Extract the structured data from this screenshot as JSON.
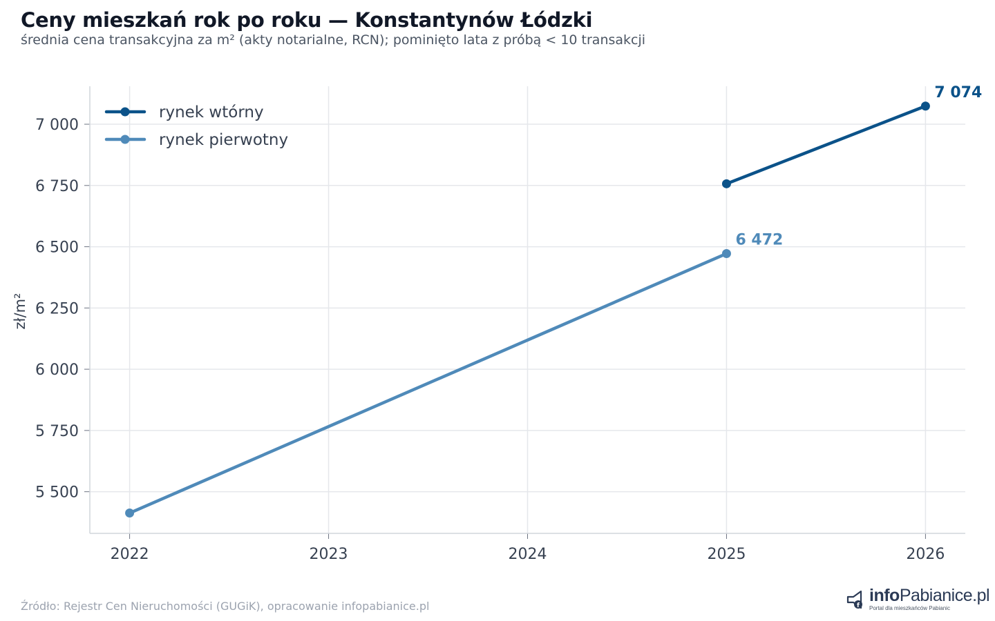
{
  "header": {
    "title": "Ceny mieszkań rok po roku — Konstantynów Łódzki",
    "subtitle": "średnia cena transakcyjna za m² (akty notarialne, RCN); pominięto lata z próbą < 10 transakcji"
  },
  "chart_data": {
    "type": "line",
    "title": "Ceny mieszkań rok po roku — Konstantynów Łódzki",
    "subtitle": "średnia cena transakcyjna za m² (akty notarialne, RCN); pominięto lata z próbą < 10 transakcji",
    "xlabel": "",
    "ylabel": "zł/m²",
    "x": [
      2022,
      2023,
      2024,
      2025,
      2026
    ],
    "x_tick_labels": [
      "2022",
      "2023",
      "2024",
      "2025",
      "2026"
    ],
    "xlim": [
      2021.8,
      2026.2
    ],
    "ylim": [
      5330,
      7155
    ],
    "y_ticks": [
      5500,
      5750,
      6000,
      6250,
      6500,
      6750,
      7000
    ],
    "y_tick_labels": [
      "5 500",
      "5 750",
      "6 000",
      "6 250",
      "6 500",
      "6 750",
      "7 000"
    ],
    "grid": true,
    "legend_position": "top-left",
    "series": [
      {
        "name": "rynek wtórny",
        "color": "#0b5289",
        "points": [
          [
            2025,
            6757
          ],
          [
            2026,
            7074
          ]
        ],
        "end_label": "7 074"
      },
      {
        "name": "rynek pierwotny",
        "color": "#4f8ab9",
        "points": [
          [
            2022,
            5413
          ],
          [
            2025,
            6472
          ]
        ],
        "end_label": "6 472"
      }
    ]
  },
  "footer": {
    "source": "Źródło: Rejestr Cen Nieruchomości (GUGiK), opracowanie infopabianice.pl"
  },
  "logo": {
    "brand_bold": "info",
    "brand_light": "Pabianice.pl",
    "tagline": "Portal dla mieszkańców Pabianic"
  }
}
